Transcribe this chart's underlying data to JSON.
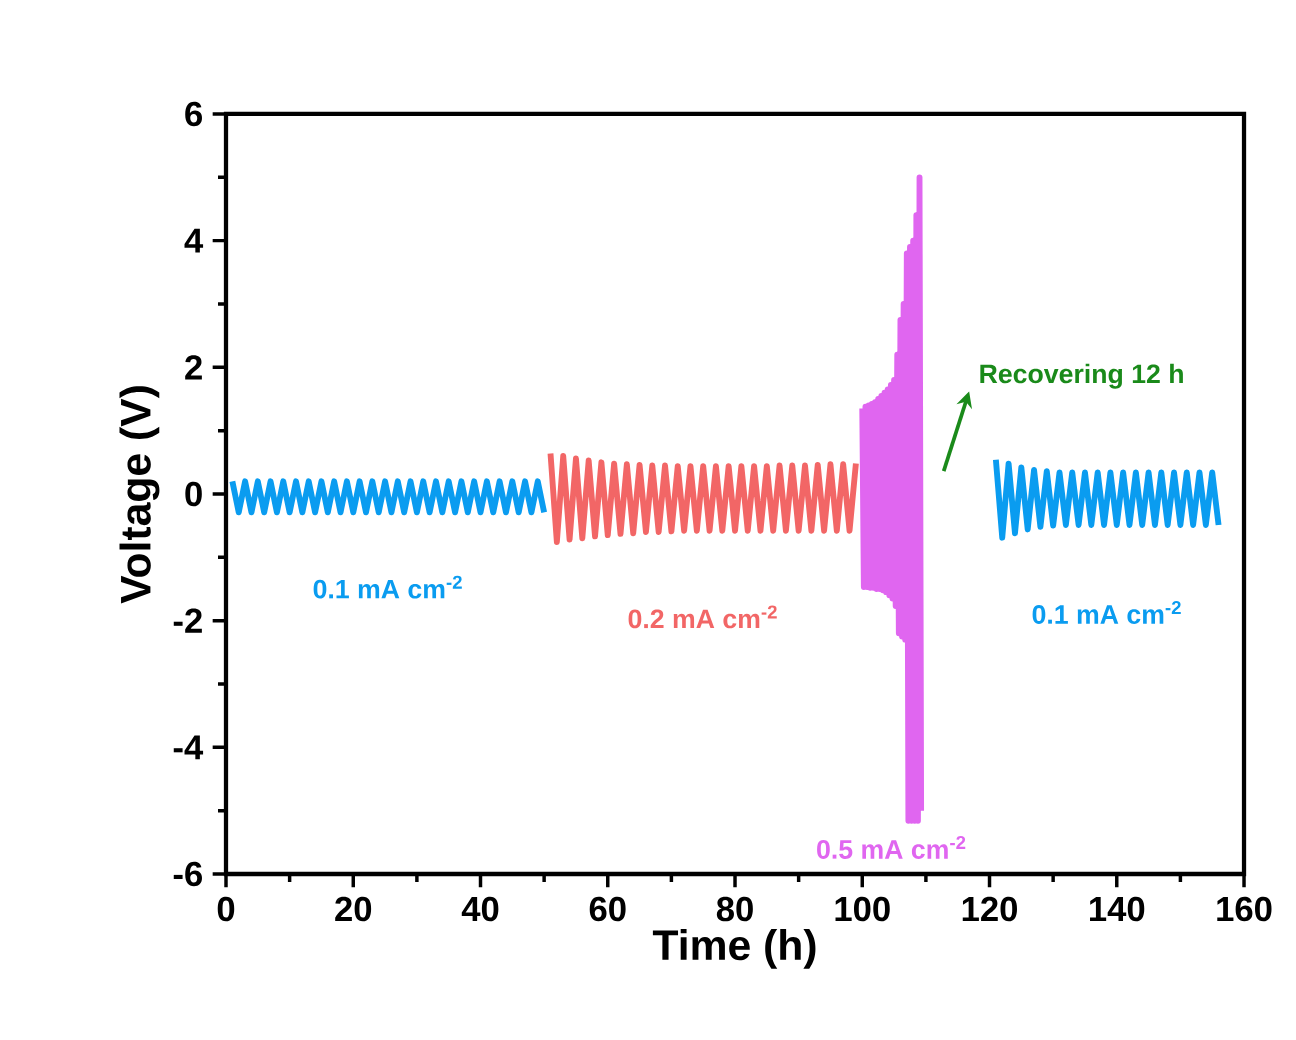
{
  "chart_data": {
    "type": "line",
    "xlabel": "Time (h)",
    "ylabel": "Voltage (V)",
    "xlim": [
      0,
      160
    ],
    "ylim": [
      -6,
      6
    ],
    "xticks": [
      0,
      20,
      40,
      60,
      80,
      100,
      120,
      140,
      160
    ],
    "yticks": [
      -6,
      -4,
      -2,
      0,
      2,
      4,
      6
    ],
    "grid": false,
    "legend": false,
    "annotations": [
      "Recovering 12 h"
    ],
    "series": [
      {
        "name": "0.1 mA cm$^{-2}$",
        "color": "#0a9cf0",
        "x": [
          1,
          2,
          3,
          4,
          5,
          6,
          7,
          8,
          9,
          10,
          11,
          12,
          13,
          14,
          15,
          16,
          17,
          18,
          19,
          20,
          21,
          22,
          23,
          24,
          25,
          26,
          27,
          28,
          29,
          30,
          31,
          32,
          33,
          34,
          35,
          36,
          37,
          38,
          39,
          40,
          41,
          42,
          43,
          44,
          45,
          46,
          47,
          48,
          49,
          50
        ],
        "values": [
          0.2,
          -0.29,
          0.2,
          -0.29,
          0.2,
          -0.29,
          0.2,
          -0.29,
          0.2,
          -0.29,
          0.2,
          -0.29,
          0.2,
          -0.29,
          0.2,
          -0.29,
          0.2,
          -0.29,
          0.2,
          -0.29,
          0.2,
          -0.29,
          0.2,
          -0.29,
          0.2,
          -0.29,
          0.2,
          -0.29,
          0.2,
          -0.29,
          0.2,
          -0.29,
          0.2,
          -0.29,
          0.2,
          -0.29,
          0.2,
          -0.29,
          0.2,
          -0.29,
          0.2,
          -0.29,
          0.2,
          -0.29,
          0.2,
          -0.29,
          0.2,
          -0.29,
          0.2,
          -0.29
        ]
      },
      {
        "name": "0.2 mA cm$^{-2}$",
        "color": "#f26666",
        "x": [
          51,
          52,
          53,
          54,
          55,
          56,
          57,
          58,
          59,
          60,
          61,
          62,
          63,
          64,
          65,
          66,
          67,
          68,
          69,
          70,
          71,
          72,
          73,
          74,
          75,
          76,
          77,
          78,
          79,
          80,
          81,
          82,
          83,
          84,
          85,
          86,
          87,
          88,
          89,
          90,
          91,
          92,
          93,
          94,
          95,
          96,
          97,
          98,
          99
        ],
        "values": [
          0.64,
          -0.76,
          0.6,
          -0.72,
          0.56,
          -0.7,
          0.53,
          -0.67,
          0.5,
          -0.65,
          0.48,
          -0.63,
          0.47,
          -0.62,
          0.46,
          -0.6,
          0.45,
          -0.6,
          0.45,
          -0.59,
          0.44,
          -0.58,
          0.44,
          -0.58,
          0.44,
          -0.58,
          0.44,
          -0.58,
          0.44,
          -0.58,
          0.44,
          -0.58,
          0.44,
          -0.58,
          0.44,
          -0.58,
          0.45,
          -0.58,
          0.45,
          -0.58,
          0.45,
          -0.58,
          0.46,
          -0.58,
          0.47,
          -0.58,
          0.47,
          -0.58,
          0.48
        ]
      },
      {
        "name": "0.5 mA cm$^{-2}$",
        "color": "#e066f0",
        "x": [
          100,
          100.25,
          100.5,
          100.75,
          101,
          101.25,
          101.5,
          101.75,
          102,
          102.25,
          102.5,
          102.75,
          103,
          103.25,
          103.5,
          103.75,
          104,
          104.25,
          104.5,
          104.75,
          105,
          105.25,
          105.5,
          105.75,
          106,
          106.25,
          106.5,
          106.75,
          107,
          107.25,
          107.5,
          107.75,
          108,
          108.25,
          108.5,
          108.75,
          109,
          109.25
        ],
        "values": [
          1.35,
          -1.47,
          1.38,
          -1.47,
          1.4,
          -1.48,
          1.42,
          -1.48,
          1.45,
          -1.5,
          1.5,
          -1.5,
          1.55,
          -1.52,
          1.6,
          -1.55,
          1.65,
          -1.6,
          1.72,
          -1.65,
          1.8,
          -1.77,
          2.2,
          -2.2,
          2.75,
          -2.25,
          3.0,
          -2.3,
          3.8,
          -5.16,
          3.9,
          -5.16,
          4.0,
          -5.16,
          4.4,
          -5.16,
          5.0,
          -5.0
        ]
      },
      {
        "name": "0.1 mA cm$^{-2}$",
        "color": "#0a9cf0",
        "x": [
          121,
          122,
          123,
          124,
          125,
          126,
          127,
          128,
          129,
          130,
          131,
          132,
          133,
          134,
          135,
          136,
          137,
          138,
          139,
          140,
          141,
          142,
          143,
          144,
          145,
          146,
          147,
          148,
          149,
          150,
          151,
          152,
          153,
          154,
          155,
          156
        ],
        "values": [
          0.54,
          -0.69,
          0.48,
          -0.62,
          0.42,
          -0.56,
          0.38,
          -0.52,
          0.36,
          -0.5,
          0.34,
          -0.49,
          0.34,
          -0.49,
          0.34,
          -0.49,
          0.34,
          -0.49,
          0.34,
          -0.49,
          0.34,
          -0.49,
          0.34,
          -0.49,
          0.34,
          -0.49,
          0.34,
          -0.49,
          0.34,
          -0.49,
          0.34,
          -0.49,
          0.34,
          -0.49,
          0.34,
          -0.49
        ]
      }
    ]
  }
}
